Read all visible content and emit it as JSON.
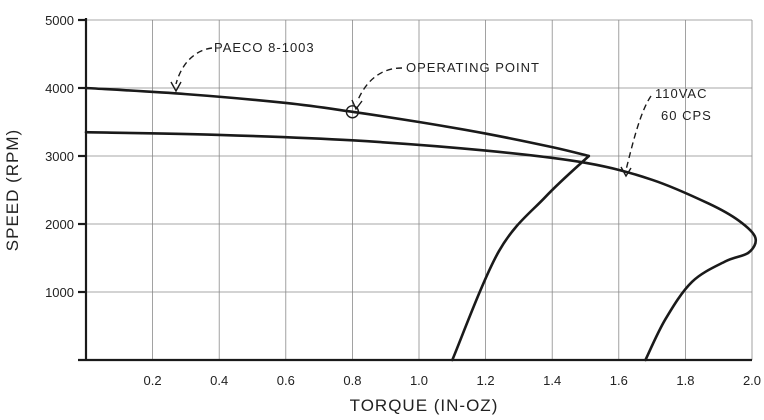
{
  "chart_data": {
    "type": "line",
    "title": "",
    "xlabel": "TORQUE (IN-OZ)",
    "ylabel": "SPEED (RPM)",
    "xlim": [
      0,
      2.0
    ],
    "ylim": [
      0,
      5000
    ],
    "grid": true,
    "x_ticks": [
      "0.2",
      "0.4",
      "0.6",
      "0.8",
      "1.0",
      "1.2",
      "1.4",
      "1.6",
      "1.8",
      "2.0"
    ],
    "y_ticks": [
      "1000",
      "2000",
      "3000",
      "4000",
      "5000"
    ],
    "series": [
      {
        "name": "PAECO 8-1003",
        "points": [
          [
            0,
            4000
          ],
          [
            0.3,
            3910
          ],
          [
            0.6,
            3780
          ],
          [
            0.8,
            3650
          ],
          [
            1.0,
            3500
          ],
          [
            1.2,
            3330
          ],
          [
            1.4,
            3130
          ],
          [
            1.51,
            3000
          ],
          [
            1.38,
            2400
          ],
          [
            1.24,
            1600
          ],
          [
            1.1,
            0
          ]
        ]
      },
      {
        "name": "110VAC 60 CPS",
        "points": [
          [
            0,
            3350
          ],
          [
            0.4,
            3310
          ],
          [
            0.8,
            3230
          ],
          [
            1.2,
            3080
          ],
          [
            1.5,
            2900
          ],
          [
            1.7,
            2650
          ],
          [
            1.87,
            2300
          ],
          [
            1.96,
            2050
          ],
          [
            2.01,
            1800
          ],
          [
            1.99,
            1580
          ],
          [
            1.92,
            1450
          ],
          [
            1.82,
            1150
          ],
          [
            1.74,
            600
          ],
          [
            1.68,
            0
          ]
        ]
      }
    ],
    "annotations": [
      {
        "text": "PAECO 8-1003",
        "target": [
          0.25,
          3950
        ]
      },
      {
        "text": "OPERATING POINT",
        "target": [
          0.8,
          3650
        ]
      },
      {
        "text": "110VAC",
        "target": [
          1.62,
          2800
        ]
      },
      {
        "text": "60 CPS",
        "target": [
          1.62,
          2800
        ]
      }
    ]
  }
}
